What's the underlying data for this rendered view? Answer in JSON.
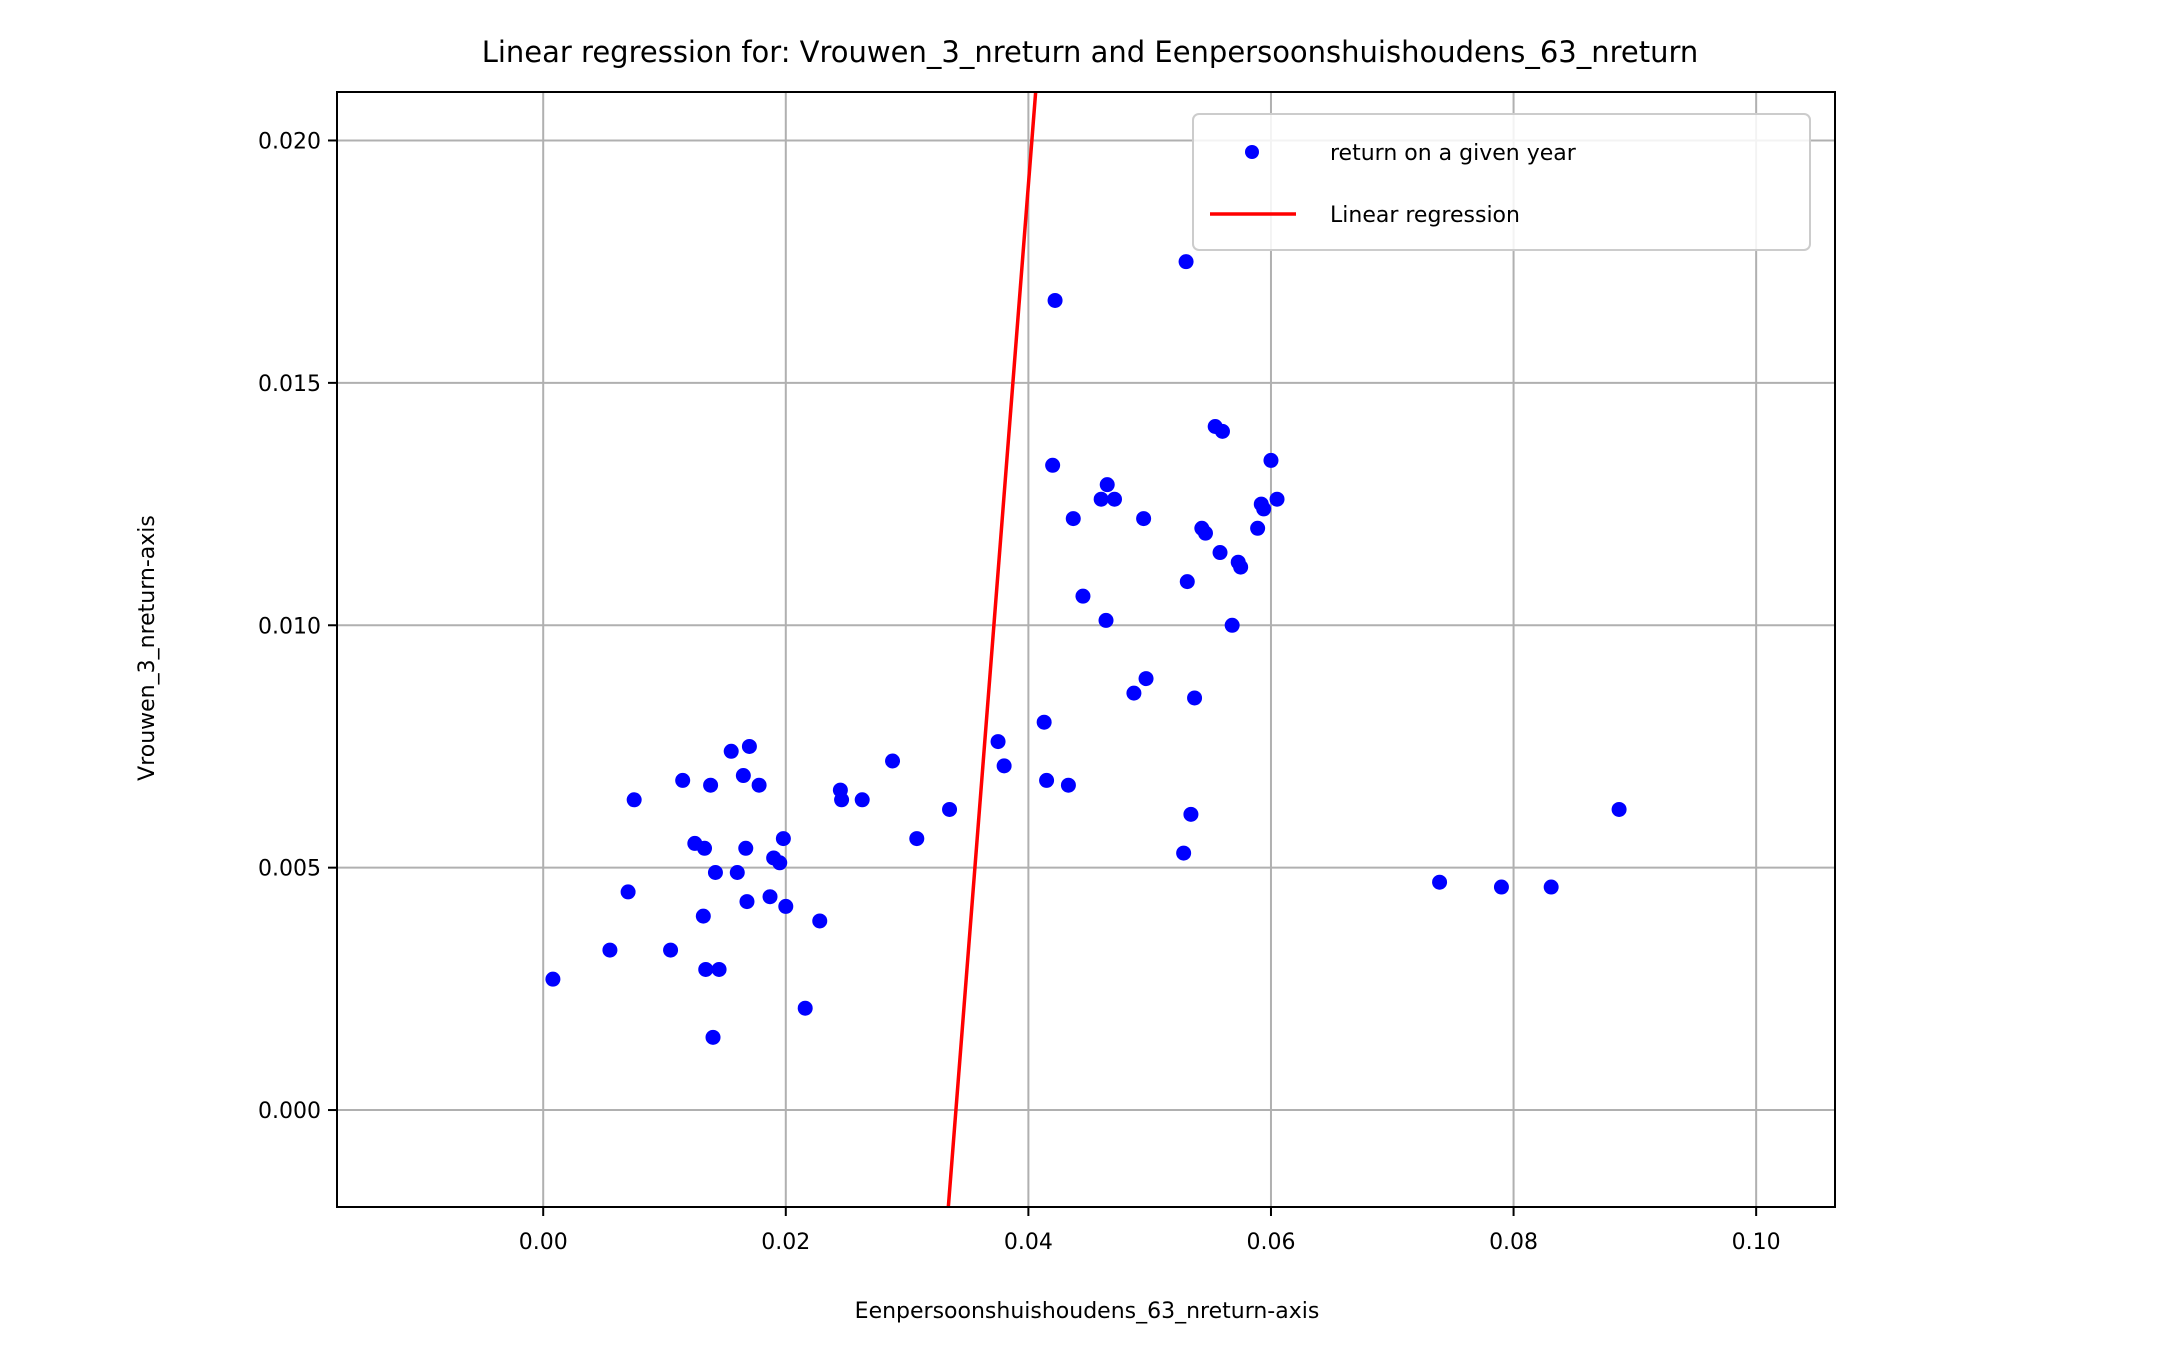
{
  "chart_data": {
    "type": "scatter",
    "title": "Linear regression for: Vrouwen_3_nreturn and Eenpersoonshuishoudens_63_nreturn",
    "xlabel": "Eenpersoonshuishoudens_63_nreturn-axis",
    "ylabel": "Vrouwen_3_nreturn-axis",
    "xlim": [
      -0.017,
      0.1065
    ],
    "ylim": [
      -0.002,
      0.021
    ],
    "x_ticks": [
      0.0,
      0.02,
      0.04,
      0.06,
      0.08,
      0.1
    ],
    "x_tick_labels": [
      "0.00",
      "0.02",
      "0.04",
      "0.06",
      "0.08",
      "0.10"
    ],
    "y_ticks": [
      0.0,
      0.005,
      0.01,
      0.015,
      0.02
    ],
    "y_tick_labels": [
      "0.000",
      "0.005",
      "0.010",
      "0.015",
      "0.020"
    ],
    "grid": true,
    "legend_position": "top-right",
    "colors": {
      "points": "#0000ff",
      "line": "#ff0000",
      "grid": "#b0b0b0"
    },
    "series": [
      {
        "name": "return on a given year",
        "kind": "scatter",
        "points": [
          [
            0.0008,
            0.0027
          ],
          [
            0.0055,
            0.0033
          ],
          [
            0.007,
            0.0045
          ],
          [
            0.0075,
            0.0064
          ],
          [
            0.0105,
            0.0033
          ],
          [
            0.0115,
            0.0068
          ],
          [
            0.0125,
            0.0055
          ],
          [
            0.0132,
            0.004
          ],
          [
            0.0133,
            0.0054
          ],
          [
            0.0134,
            0.0029
          ],
          [
            0.0138,
            0.0067
          ],
          [
            0.014,
            0.0015
          ],
          [
            0.0142,
            0.0049
          ],
          [
            0.0145,
            0.0029
          ],
          [
            0.0155,
            0.0074
          ],
          [
            0.016,
            0.0049
          ],
          [
            0.0165,
            0.0069
          ],
          [
            0.0167,
            0.0054
          ],
          [
            0.0168,
            0.0043
          ],
          [
            0.017,
            0.0075
          ],
          [
            0.0178,
            0.0067
          ],
          [
            0.0187,
            0.0044
          ],
          [
            0.019,
            0.0052
          ],
          [
            0.0195,
            0.0051
          ],
          [
            0.0198,
            0.0056
          ],
          [
            0.02,
            0.0042
          ],
          [
            0.0216,
            0.0021
          ],
          [
            0.0228,
            0.0039
          ],
          [
            0.0245,
            0.0066
          ],
          [
            0.0246,
            0.0064
          ],
          [
            0.0263,
            0.0064
          ],
          [
            0.0288,
            0.0072
          ],
          [
            0.0308,
            0.0056
          ],
          [
            0.0335,
            0.0062
          ],
          [
            0.0375,
            0.0076
          ],
          [
            0.038,
            0.0071
          ],
          [
            0.0413,
            0.008
          ],
          [
            0.0415,
            0.0068
          ],
          [
            0.042,
            0.0133
          ],
          [
            0.0422,
            0.0167
          ],
          [
            0.0433,
            0.0067
          ],
          [
            0.0437,
            0.0122
          ],
          [
            0.0445,
            0.0106
          ],
          [
            0.046,
            0.0126
          ],
          [
            0.0464,
            0.0101
          ],
          [
            0.0465,
            0.0129
          ],
          [
            0.0471,
            0.0126
          ],
          [
            0.0487,
            0.0086
          ],
          [
            0.0495,
            0.0122
          ],
          [
            0.0497,
            0.0089
          ],
          [
            0.0528,
            0.0053
          ],
          [
            0.053,
            0.0175
          ],
          [
            0.0531,
            0.0109
          ],
          [
            0.0534,
            0.0061
          ],
          [
            0.0537,
            0.0085
          ],
          [
            0.0543,
            0.012
          ],
          [
            0.0546,
            0.0119
          ],
          [
            0.0554,
            0.0141
          ],
          [
            0.0558,
            0.0115
          ],
          [
            0.056,
            0.014
          ],
          [
            0.0568,
            0.01
          ],
          [
            0.0573,
            0.0113
          ],
          [
            0.0575,
            0.0112
          ],
          [
            0.0589,
            0.012
          ],
          [
            0.0592,
            0.0125
          ],
          [
            0.0594,
            0.0124
          ],
          [
            0.06,
            0.0134
          ],
          [
            0.0605,
            0.0126
          ],
          [
            0.0739,
            0.0047
          ],
          [
            0.079,
            0.0046
          ],
          [
            0.0831,
            0.0046
          ],
          [
            0.0887,
            0.0062
          ]
        ]
      },
      {
        "name": "Linear regression",
        "kind": "line",
        "points": [
          [
            0.0334,
            -0.002
          ],
          [
            0.0406,
            0.021
          ]
        ]
      }
    ]
  }
}
